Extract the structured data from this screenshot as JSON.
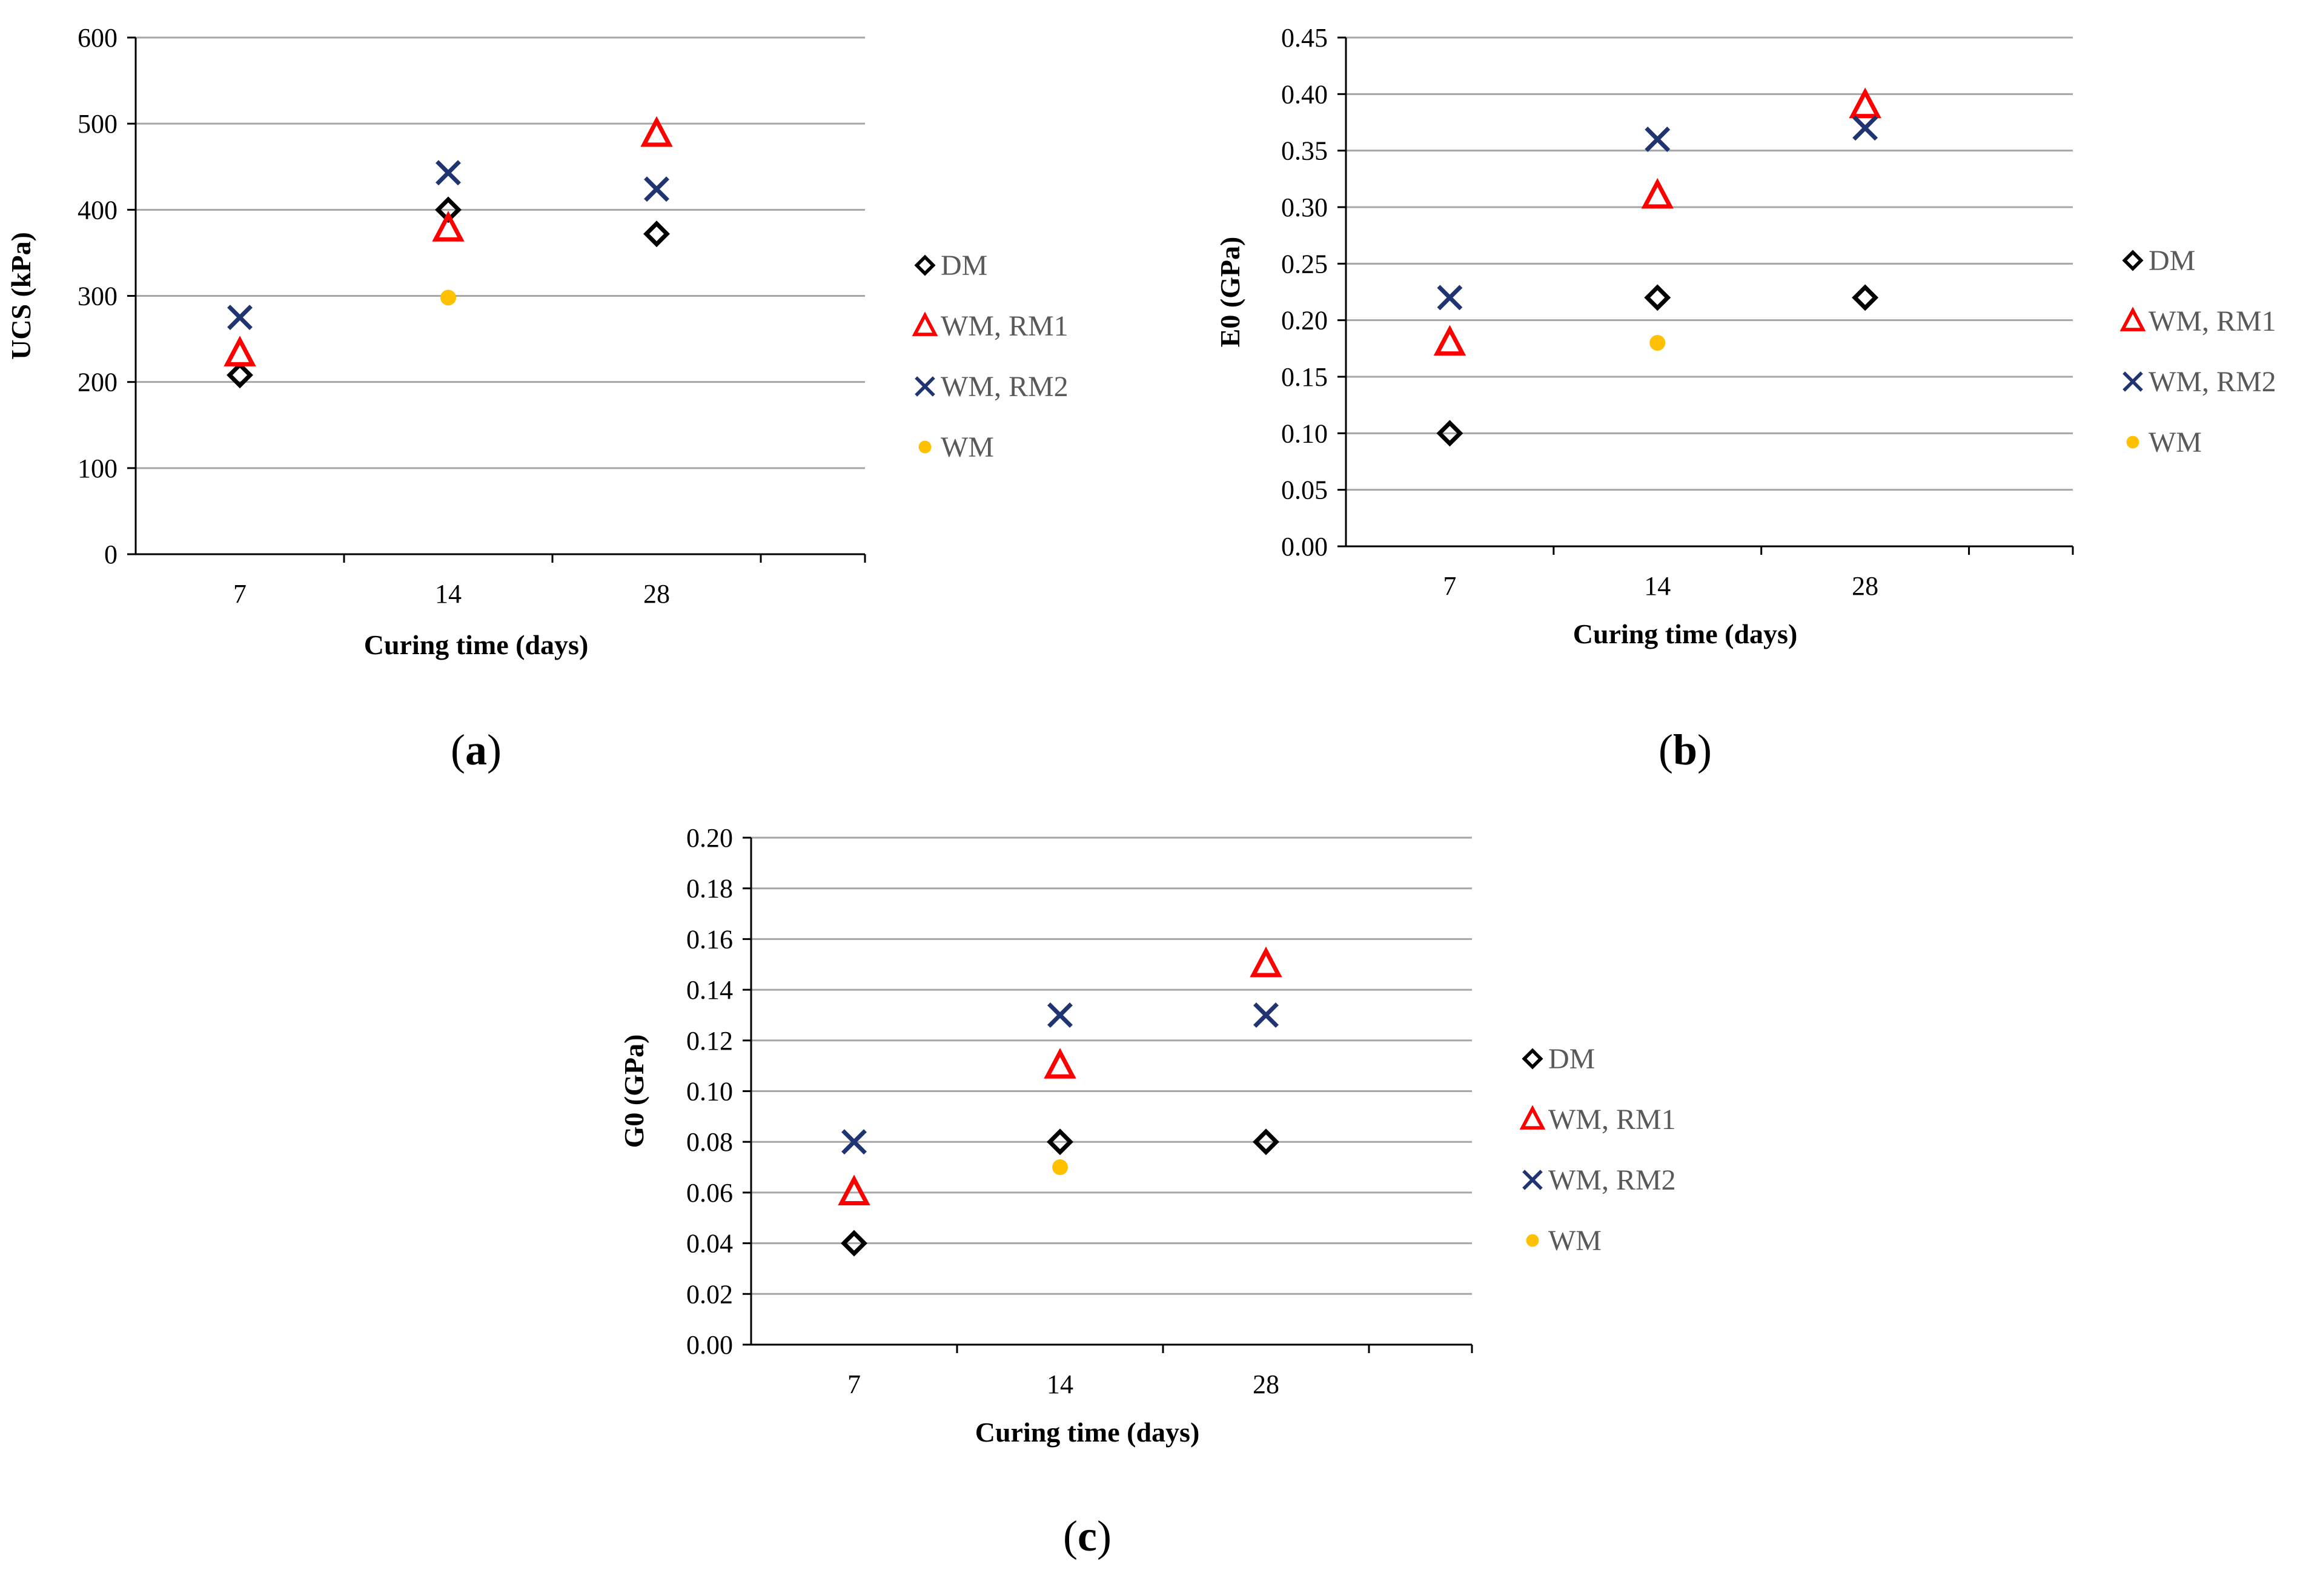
{
  "figure": {
    "panel_labels": [
      "a",
      "b",
      "c"
    ],
    "legend": [
      "DM",
      "WM, RM1",
      "WM, RM2",
      "WM"
    ],
    "colors": {
      "DM": "#000000",
      "WM, RM1": "#ff0000",
      "WM, RM2": "#1f3470",
      "WM": "#ffc000",
      "grid": "#a6a6a6"
    },
    "markers": {
      "DM": "diamond",
      "WM, RM1": "triangle",
      "WM, RM2": "x",
      "WM": "circle"
    }
  },
  "chart_data": [
    {
      "id": "a",
      "type": "scatter",
      "title": "",
      "xlabel": "Curing time (days)",
      "ylabel": "UCS (kPa)",
      "categories": [
        "7",
        "14",
        "28"
      ],
      "ylim": [
        0,
        600
      ],
      "yticks": [
        "0",
        "100",
        "200",
        "300",
        "400",
        "500",
        "600"
      ],
      "grid": true,
      "legend_position": "right",
      "series": [
        {
          "name": "DM",
          "values": [
            208,
            400,
            372
          ]
        },
        {
          "name": "WM, RM1",
          "values": [
            233,
            378,
            488
          ]
        },
        {
          "name": "WM, RM2",
          "values": [
            275,
            443,
            424
          ]
        },
        {
          "name": "WM",
          "values": [
            null,
            298,
            null
          ]
        }
      ]
    },
    {
      "id": "b",
      "type": "scatter",
      "title": "",
      "xlabel": "Curing time (days)",
      "ylabel": "E0 (GPa)",
      "categories": [
        "7",
        "14",
        "28"
      ],
      "ylim": [
        0,
        0.45
      ],
      "yticks": [
        "0.00",
        "0.05",
        "0.10",
        "0.15",
        "0.20",
        "0.25",
        "0.30",
        "0.35",
        "0.40",
        "0.45"
      ],
      "grid": true,
      "legend_position": "right",
      "series": [
        {
          "name": "DM",
          "values": [
            0.1,
            0.22,
            0.22
          ]
        },
        {
          "name": "WM, RM1",
          "values": [
            0.18,
            0.31,
            0.39
          ]
        },
        {
          "name": "WM, RM2",
          "values": [
            0.22,
            0.36,
            0.37
          ]
        },
        {
          "name": "WM",
          "values": [
            null,
            0.18,
            null
          ]
        }
      ]
    },
    {
      "id": "c",
      "type": "scatter",
      "title": "",
      "xlabel": "Curing time (days)",
      "ylabel": "G0 (GPa)",
      "categories": [
        "7",
        "14",
        "28"
      ],
      "ylim": [
        0,
        0.2
      ],
      "yticks": [
        "0.00",
        "0.02",
        "0.04",
        "0.06",
        "0.08",
        "0.10",
        "0.12",
        "0.14",
        "0.16",
        "0.18",
        "0.20"
      ],
      "grid": true,
      "legend_position": "right",
      "series": [
        {
          "name": "DM",
          "values": [
            0.04,
            0.08,
            0.08
          ]
        },
        {
          "name": "WM, RM1",
          "values": [
            0.06,
            0.11,
            0.15
          ]
        },
        {
          "name": "WM, RM2",
          "values": [
            0.08,
            0.13,
            0.13
          ]
        },
        {
          "name": "WM",
          "values": [
            null,
            0.07,
            null
          ]
        }
      ]
    }
  ]
}
